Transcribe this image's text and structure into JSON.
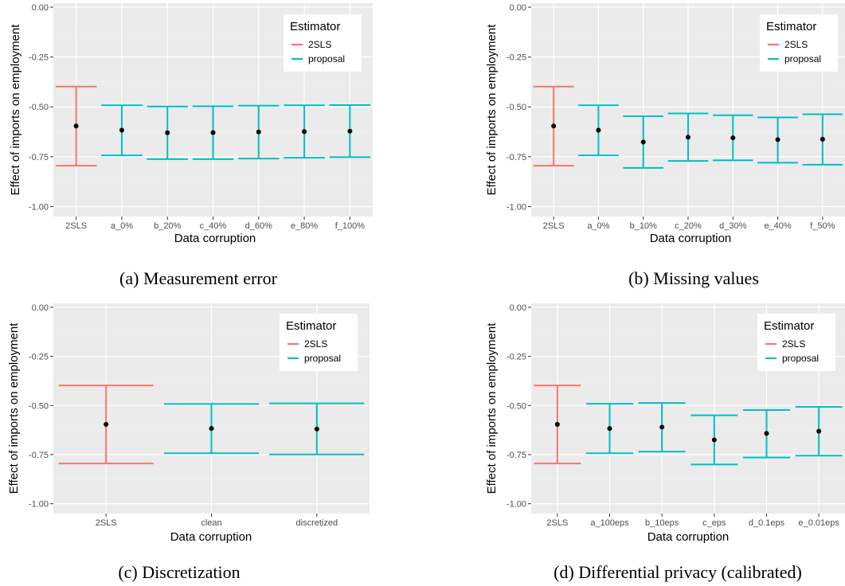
{
  "chart_data": [
    {
      "type": "errorbar",
      "caption": "(a)  Measurement error",
      "xlabel": "Data corruption",
      "ylabel": "Effect of imports on employment",
      "ylim": [
        -1.05,
        0.02
      ],
      "yticks": [
        0.0,
        -0.25,
        -0.5,
        -0.75,
        -1.0
      ],
      "ytick_labels": [
        "0.00",
        "-0.25",
        "-0.50",
        "-0.75",
        "-1.00"
      ],
      "grid": true,
      "legend": {
        "title": "Estimator",
        "position": "top-right",
        "entries": [
          {
            "label": "2SLS",
            "color": "#F8766D"
          },
          {
            "label": "proposal",
            "color": "#00BFC4"
          }
        ]
      },
      "categories": [
        "2SLS",
        "a_0%",
        "b_20%",
        "c_40%",
        "d_60%",
        "e_80%",
        "f_100%"
      ],
      "estimator": [
        "2SLS",
        "proposal",
        "proposal",
        "proposal",
        "proposal",
        "proposal",
        "proposal"
      ],
      "point": [
        -0.596,
        -0.617,
        -0.63,
        -0.629,
        -0.626,
        -0.624,
        -0.622
      ],
      "lower": [
        -0.795,
        -0.743,
        -0.762,
        -0.762,
        -0.759,
        -0.755,
        -0.752
      ],
      "upper": [
        -0.398,
        -0.492,
        -0.498,
        -0.497,
        -0.494,
        -0.492,
        -0.491
      ]
    },
    {
      "type": "errorbar",
      "caption": "(b)  Missing values",
      "xlabel": "Data corruption",
      "ylabel": "Effect of imports on employment",
      "ylim": [
        -1.05,
        0.02
      ],
      "yticks": [
        0.0,
        -0.25,
        -0.5,
        -0.75,
        -1.0
      ],
      "ytick_labels": [
        "0.00",
        "-0.25",
        "-0.50",
        "-0.75",
        "-1.00"
      ],
      "grid": true,
      "legend": {
        "title": "Estimator",
        "position": "top-right",
        "entries": [
          {
            "label": "2SLS",
            "color": "#F8766D"
          },
          {
            "label": "proposal",
            "color": "#00BFC4"
          }
        ]
      },
      "categories": [
        "2SLS",
        "a_0%",
        "b_10%",
        "c_20%",
        "d_30%",
        "e_40%",
        "f_50%"
      ],
      "estimator": [
        "2SLS",
        "proposal",
        "proposal",
        "proposal",
        "proposal",
        "proposal",
        "proposal"
      ],
      "point": [
        -0.596,
        -0.617,
        -0.676,
        -0.652,
        -0.655,
        -0.664,
        -0.662
      ],
      "lower": [
        -0.795,
        -0.743,
        -0.806,
        -0.771,
        -0.768,
        -0.78,
        -0.79
      ],
      "upper": [
        -0.398,
        -0.492,
        -0.547,
        -0.533,
        -0.542,
        -0.553,
        -0.537
      ]
    },
    {
      "type": "errorbar",
      "caption": "(c)  Discretization",
      "xlabel": "Data corruption",
      "ylabel": "Effect of imports on employment",
      "ylim": [
        -1.05,
        0.02
      ],
      "yticks": [
        0.0,
        -0.25,
        -0.5,
        -0.75,
        -1.0
      ],
      "ytick_labels": [
        "0.00",
        "-0.25",
        "-0.50",
        "-0.75",
        "-1.00"
      ],
      "grid": true,
      "legend": {
        "title": "Estimator",
        "position": "top-right",
        "entries": [
          {
            "label": "2SLS",
            "color": "#F8766D"
          },
          {
            "label": "proposal",
            "color": "#00BFC4"
          }
        ]
      },
      "categories": [
        "2SLS",
        "clean",
        "discretized"
      ],
      "estimator": [
        "2SLS",
        "proposal",
        "proposal"
      ],
      "point": [
        -0.596,
        -0.617,
        -0.62
      ],
      "lower": [
        -0.795,
        -0.743,
        -0.749
      ],
      "upper": [
        -0.398,
        -0.492,
        -0.489
      ]
    },
    {
      "type": "errorbar",
      "caption": "(d)  Differential privacy (calibrated)",
      "xlabel": "Data corruption",
      "ylabel": "Effect of imports on employment",
      "ylim": [
        -1.05,
        0.02
      ],
      "yticks": [
        0.0,
        -0.25,
        -0.5,
        -0.75,
        -1.0
      ],
      "ytick_labels": [
        "0.00",
        "-0.25",
        "-0.50",
        "-0.75",
        "-1.00"
      ],
      "grid": true,
      "legend": {
        "title": "Estimator",
        "position": "top-right",
        "entries": [
          {
            "label": "2SLS",
            "color": "#F8766D"
          },
          {
            "label": "proposal",
            "color": "#00BFC4"
          }
        ]
      },
      "categories": [
        "2SLS",
        "a_100eps",
        "b_10eps",
        "c_eps",
        "d_0.1eps",
        "e_0.01eps"
      ],
      "estimator": [
        "2SLS",
        "proposal",
        "proposal",
        "proposal",
        "proposal",
        "proposal"
      ],
      "point": [
        -0.596,
        -0.617,
        -0.61,
        -0.675,
        -0.642,
        -0.631
      ],
      "lower": [
        -0.795,
        -0.743,
        -0.735,
        -0.8,
        -0.765,
        -0.755
      ],
      "upper": [
        -0.398,
        -0.491,
        -0.487,
        -0.55,
        -0.523,
        -0.507
      ]
    }
  ],
  "colors": {
    "panel_bg": "#EBEBEB",
    "grid_major": "#FFFFFF",
    "grid_minor": "#F2F2F2",
    "point": "#000000"
  }
}
